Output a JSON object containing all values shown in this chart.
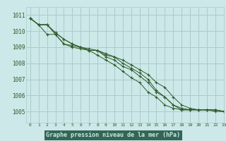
{
  "bg_color": "#cce8e8",
  "plot_bg_color": "#cce8e8",
  "grid_color": "#aacccc",
  "line_color": "#2d5a27",
  "text_color": "#2d5a27",
  "xlabel_bg": "#336655",
  "xlabel": "Graphe pression niveau de la mer (hPa)",
  "xlabel_color": "#cce8e8",
  "xlim": [
    -0.5,
    23
  ],
  "ylim": [
    1004.3,
    1011.5
  ],
  "yticks": [
    1005,
    1006,
    1007,
    1008,
    1009,
    1010,
    1011
  ],
  "xticks": [
    0,
    1,
    2,
    3,
    4,
    5,
    6,
    7,
    8,
    9,
    10,
    11,
    12,
    13,
    14,
    15,
    16,
    17,
    18,
    19,
    20,
    21,
    22,
    23
  ],
  "series": [
    [
      1010.8,
      1010.4,
      1010.4,
      1009.9,
      1009.5,
      1009.2,
      1009.0,
      1008.8,
      1008.8,
      1008.4,
      1008.2,
      1007.8,
      1007.6,
      1007.2,
      1006.8,
      1006.2,
      1005.9,
      1005.4,
      1005.1,
      1005.1,
      1005.1,
      1005.1,
      1005.1,
      1005.0
    ],
    [
      1010.8,
      1010.4,
      1010.4,
      1009.9,
      1009.5,
      1009.2,
      1009.0,
      1008.8,
      1008.8,
      1008.6,
      1008.4,
      1008.2,
      1007.9,
      1007.6,
      1007.3,
      1006.8,
      1006.5,
      1005.9,
      1005.4,
      1005.2,
      1005.1,
      1005.1,
      1005.1,
      1005.0
    ],
    [
      1010.8,
      1010.4,
      1009.8,
      1009.8,
      1009.2,
      1009.1,
      1009.0,
      1008.9,
      1008.8,
      1008.5,
      1008.4,
      1008.0,
      1007.7,
      1007.4,
      1007.0,
      1006.3,
      1005.9,
      1005.4,
      1005.2,
      1005.1,
      1005.1,
      1005.1,
      1005.1,
      1005.0
    ],
    [
      1010.8,
      1010.4,
      1010.4,
      1009.8,
      1009.2,
      1009.0,
      1008.9,
      1008.8,
      1008.5,
      1008.2,
      1007.9,
      1007.5,
      1007.1,
      1006.8,
      1006.2,
      1005.9,
      1005.4,
      1005.2,
      1005.1,
      1005.1,
      1005.1,
      1005.1,
      1005.0,
      1005.0
    ]
  ]
}
